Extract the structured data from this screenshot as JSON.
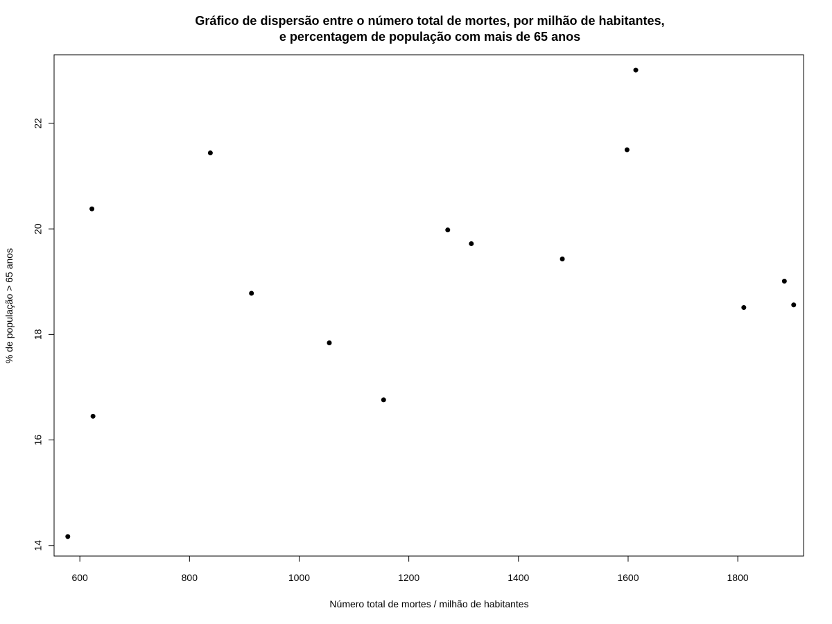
{
  "chart_data": {
    "type": "scatter",
    "title_lines": [
      "Gráfico de dispersão entre o número total de mortes, por milhão de habitantes,",
      "e percentagem de população com mais de 65 anos"
    ],
    "xlabel": "Número total de mortes / milhão de habitantes",
    "ylabel": "% de população > 65 anos",
    "xlim": [
      553,
      1920
    ],
    "ylim": [
      13.8,
      23.3
    ],
    "x_ticks": [
      600,
      800,
      1000,
      1200,
      1400,
      1600,
      1800
    ],
    "x_tick_labels": [
      "600",
      "800",
      "1000",
      "1200",
      "1400",
      "1600",
      "1800"
    ],
    "y_ticks": [
      14,
      16,
      18,
      20,
      22
    ],
    "y_tick_labels": [
      "14",
      "16",
      "18",
      "20",
      "22"
    ],
    "grid": false,
    "legend": "none",
    "marker_color": "#000000",
    "points": [
      {
        "x": 578,
        "y": 14.17
      },
      {
        "x": 622,
        "y": 20.38
      },
      {
        "x": 624,
        "y": 16.45
      },
      {
        "x": 838,
        "y": 21.44
      },
      {
        "x": 913,
        "y": 18.78
      },
      {
        "x": 1055,
        "y": 17.84
      },
      {
        "x": 1154,
        "y": 16.76
      },
      {
        "x": 1271,
        "y": 19.98
      },
      {
        "x": 1314,
        "y": 19.72
      },
      {
        "x": 1480,
        "y": 19.43
      },
      {
        "x": 1598,
        "y": 21.5
      },
      {
        "x": 1614,
        "y": 23.01
      },
      {
        "x": 1811,
        "y": 18.51
      },
      {
        "x": 1885,
        "y": 19.01
      },
      {
        "x": 1902,
        "y": 18.56
      }
    ]
  }
}
